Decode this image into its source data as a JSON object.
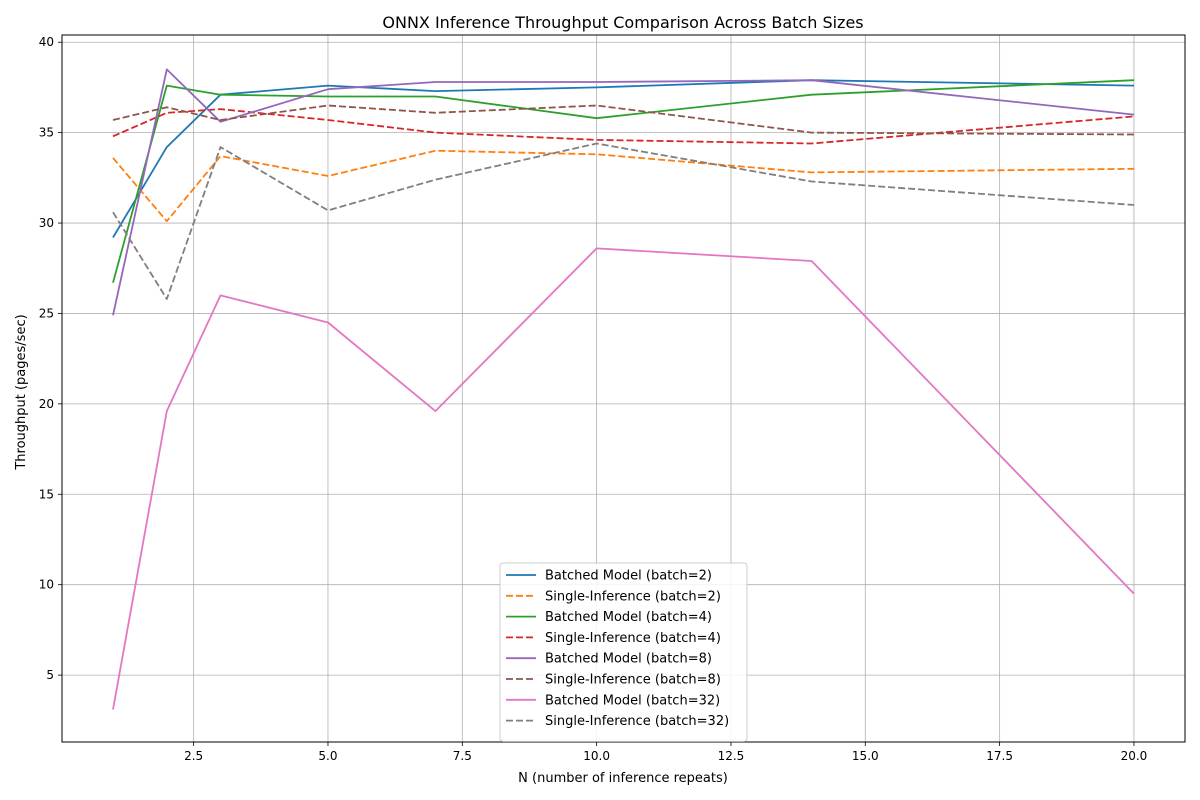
{
  "chart_data": {
    "type": "line",
    "title": "ONNX Inference Throughput Comparison Across Batch Sizes",
    "xlabel": "N (number of inference repeats)",
    "ylabel": "Throughput (pages/sec)",
    "xlim": [
      0.05,
      20.95
    ],
    "ylim": [
      1.3,
      40.4
    ],
    "xticks": [
      2.5,
      5.0,
      7.5,
      10.0,
      12.5,
      15.0,
      17.5,
      20.0
    ],
    "xtick_labels": [
      "2.5",
      "5.0",
      "7.5",
      "10.0",
      "12.5",
      "15.0",
      "17.5",
      "20.0"
    ],
    "yticks": [
      5,
      10,
      15,
      20,
      25,
      30,
      35,
      40
    ],
    "ytick_labels": [
      "5",
      "10",
      "15",
      "20",
      "25",
      "30",
      "35",
      "40"
    ],
    "grid": true,
    "legend_position": "lower-center",
    "x": [
      1,
      2,
      3,
      5,
      7,
      10,
      14,
      20
    ],
    "series": [
      {
        "name": "Batched Model (batch=2)",
        "color": "#1f77b4",
        "dash": "solid",
        "values": [
          29.2,
          34.2,
          37.1,
          37.6,
          37.3,
          37.5,
          37.9,
          37.6
        ]
      },
      {
        "name": "Single-Inference (batch=2)",
        "color": "#ff7f0e",
        "dash": "dashed",
        "values": [
          33.6,
          30.1,
          33.7,
          32.6,
          34.0,
          33.8,
          32.8,
          33.0
        ]
      },
      {
        "name": "Batched Model (batch=4)",
        "color": "#2ca02c",
        "dash": "solid",
        "values": [
          26.7,
          37.6,
          37.1,
          37.0,
          37.0,
          35.8,
          37.1,
          37.9
        ]
      },
      {
        "name": "Single-Inference (batch=4)",
        "color": "#d62728",
        "dash": "dashed",
        "values": [
          34.8,
          36.1,
          36.3,
          35.7,
          35.0,
          34.6,
          34.4,
          35.9
        ]
      },
      {
        "name": "Batched Model (batch=8)",
        "color": "#9467bd",
        "dash": "solid",
        "values": [
          24.9,
          38.5,
          35.6,
          37.4,
          37.8,
          37.8,
          37.9,
          36.0
        ]
      },
      {
        "name": "Single-Inference (batch=8)",
        "color": "#8c564b",
        "dash": "dashed",
        "values": [
          35.7,
          36.4,
          35.7,
          36.5,
          36.1,
          36.5,
          35.0,
          34.9
        ]
      },
      {
        "name": "Batched Model (batch=32)",
        "color": "#e377c2",
        "dash": "solid",
        "values": [
          3.1,
          19.6,
          26.0,
          24.5,
          19.6,
          28.6,
          27.9,
          9.5
        ]
      },
      {
        "name": "Single-Inference (batch=32)",
        "color": "#7f7f7f",
        "dash": "dashed",
        "values": [
          30.6,
          25.8,
          34.2,
          30.7,
          32.4,
          34.4,
          32.3,
          31.0
        ]
      }
    ]
  }
}
